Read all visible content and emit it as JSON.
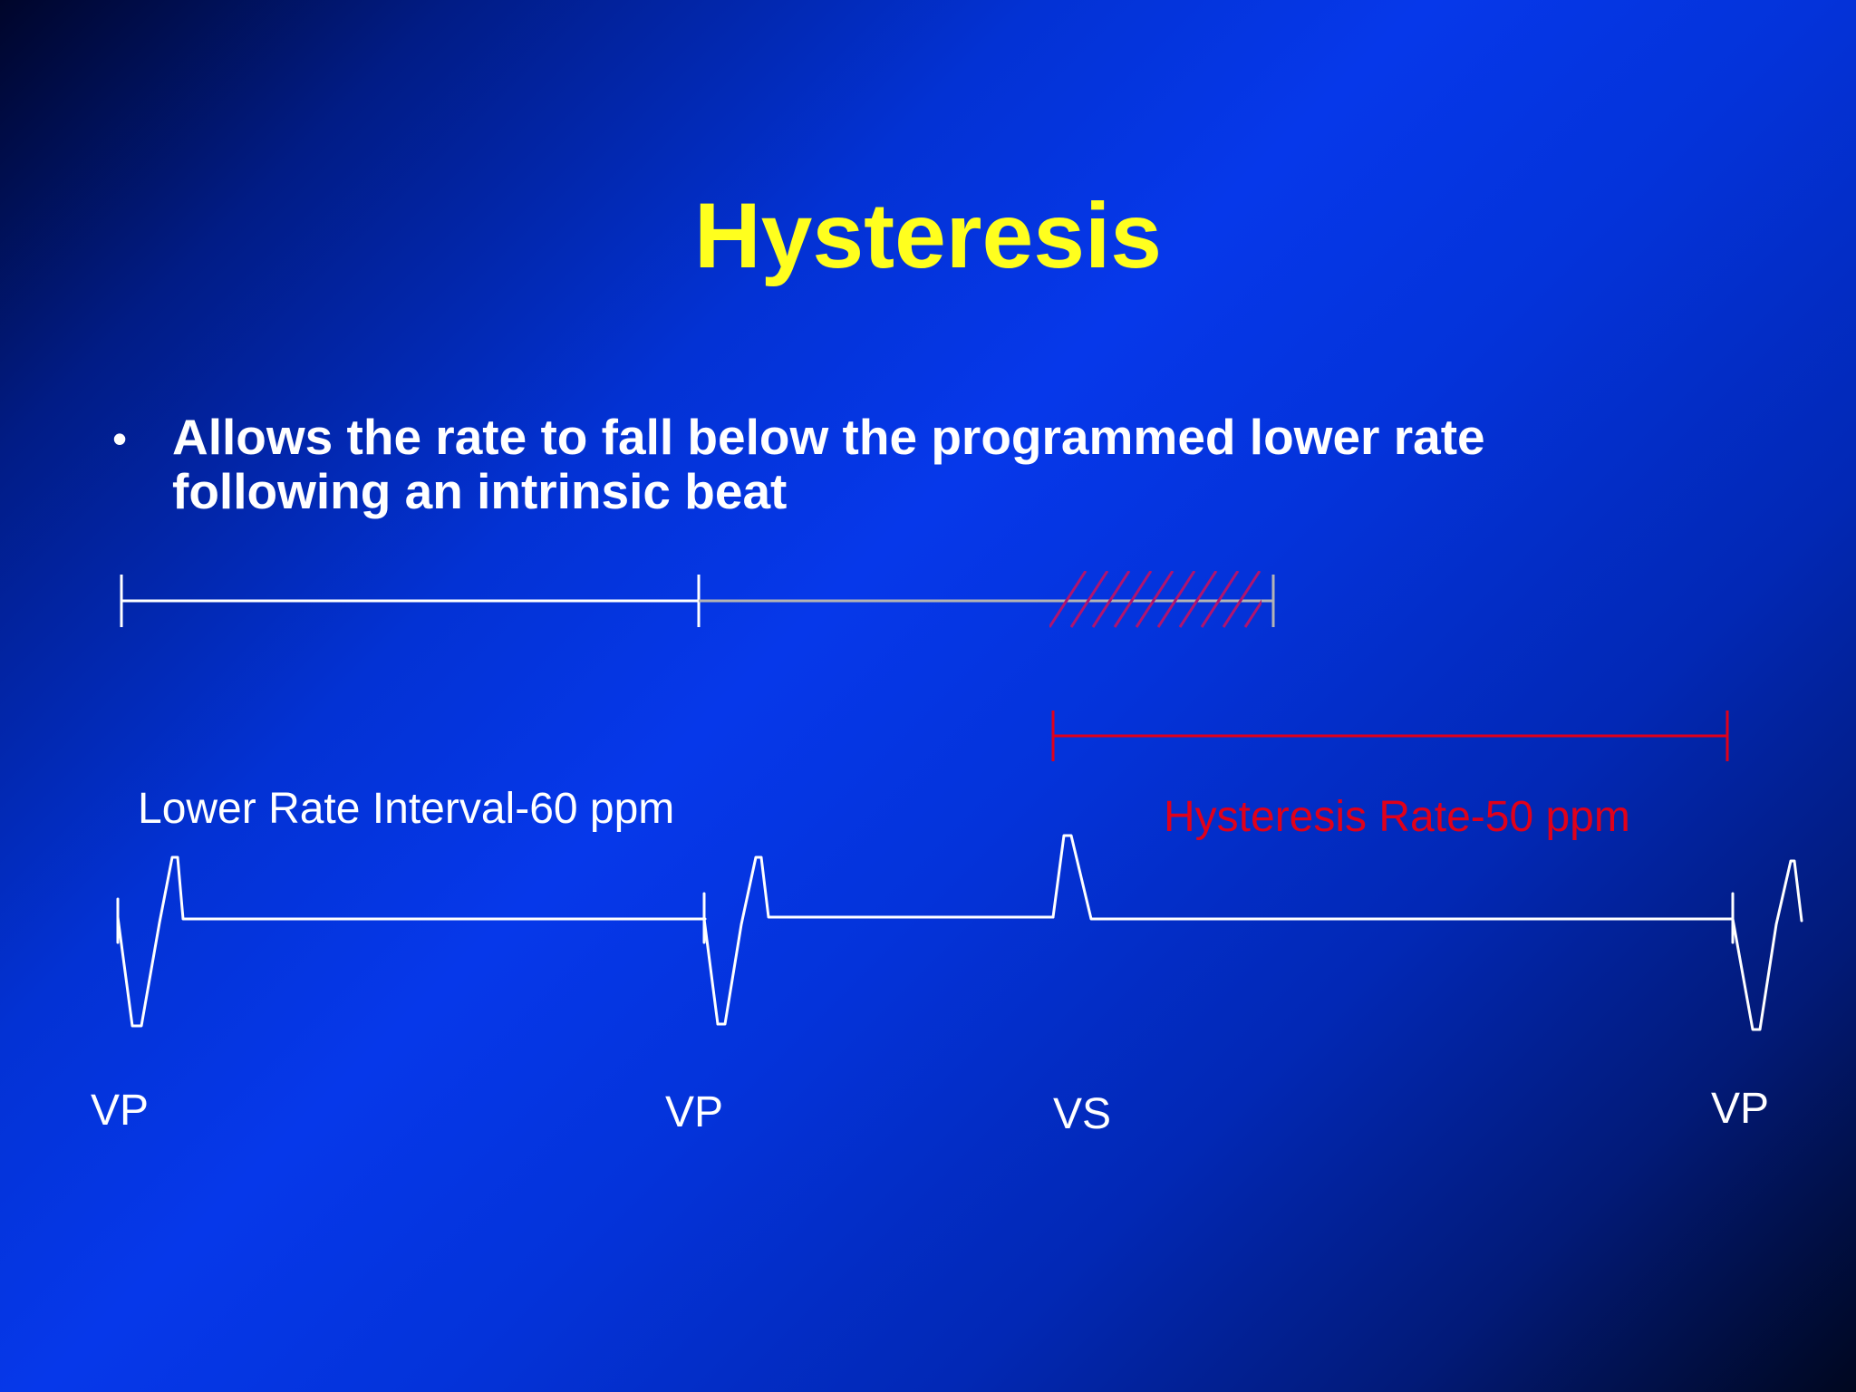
{
  "slide": {
    "title": "Hysteresis",
    "bullet": {
      "symbol": "•",
      "line1": "Allows the rate to fall below the programmed lower rate",
      "line2": "following an intrinsic beat"
    }
  },
  "diagram": {
    "interval_labels": {
      "lower_rate": "Lower Rate Interval-60 ppm",
      "hysteresis_rate": "Hysteresis Rate-50 ppm"
    },
    "event_labels": [
      "VP",
      "VP",
      "VS",
      "VP"
    ]
  },
  "colors": {
    "title": "#ffff1e",
    "text": "#ffffff",
    "hysteresis": "#e0001a",
    "hatch": "#b0146e",
    "grey_bar": "#b4b4b4"
  }
}
